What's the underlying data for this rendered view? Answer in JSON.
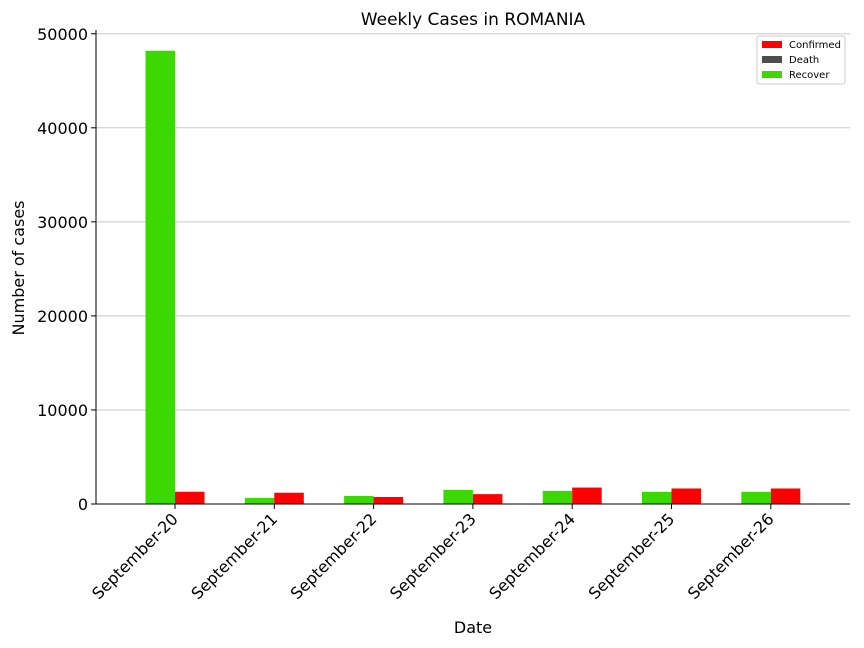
{
  "chart_data": {
    "type": "bar",
    "title": "Weekly Cases in ROMANIA",
    "xlabel": "Date",
    "ylabel": "Number of cases",
    "categories": [
      "September-20",
      "September-21",
      "September-22",
      "September-23",
      "September-24",
      "September-25",
      "September-26"
    ],
    "series": [
      {
        "name": "Confirmed",
        "color": "#ff0000",
        "values": [
          1300,
          1200,
          750,
          1050,
          1750,
          1650,
          1650
        ]
      },
      {
        "name": "Death",
        "color": "#4d4d4d",
        "values": [
          0,
          0,
          0,
          0,
          0,
          0,
          0
        ]
      },
      {
        "name": "Recover",
        "color": "#3bd900",
        "values": [
          48200,
          650,
          850,
          1500,
          1400,
          1300,
          1300
        ]
      }
    ],
    "ylim": [
      0,
      50400
    ],
    "yticks": [
      0,
      10000,
      20000,
      30000,
      40000,
      50000
    ],
    "grid": "y",
    "legend_position": "top-right"
  }
}
